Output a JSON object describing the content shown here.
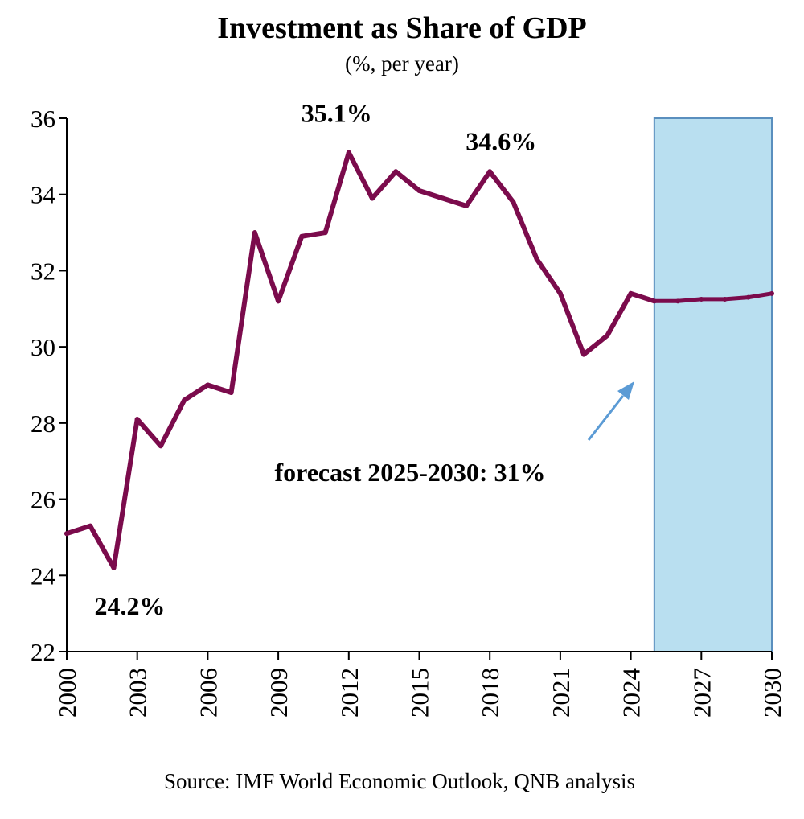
{
  "chart_data": {
    "type": "line",
    "title": "Investment as Share of GDP",
    "subtitle": "(%, per year)",
    "source": "Source: IMF World Economic Outlook, QNB analysis",
    "xlabel": "",
    "ylabel": "",
    "ylim": [
      22,
      36
    ],
    "xlim": [
      2000,
      2030
    ],
    "y_ticks": [
      22,
      24,
      26,
      28,
      30,
      32,
      34,
      36
    ],
    "x_ticks": [
      2000,
      2003,
      2006,
      2009,
      2012,
      2015,
      2018,
      2021,
      2024,
      2027,
      2030
    ],
    "x_tick_labels": [
      "2000",
      "2003",
      "2006",
      "2009",
      "2012",
      "2015",
      "2018",
      "2021",
      "2024",
      "2027",
      "2030"
    ],
    "y_tick_labels": [
      "22",
      "24",
      "26",
      "28",
      "30",
      "32",
      "34",
      "36"
    ],
    "forecast_region": {
      "start": 2025,
      "end": 2030,
      "color": "#b9dff0",
      "border_color": "#5a8fbe"
    },
    "series": [
      {
        "name": "Investment as Share of GDP",
        "color": "#7b0b4c",
        "x": [
          2000,
          2001,
          2002,
          2003,
          2004,
          2005,
          2006,
          2007,
          2008,
          2009,
          2010,
          2011,
          2012,
          2013,
          2014,
          2015,
          2016,
          2017,
          2018,
          2019,
          2020,
          2021,
          2022,
          2023,
          2024,
          2025,
          2026,
          2027,
          2028,
          2029,
          2030
        ],
        "values": [
          25.1,
          25.3,
          24.2,
          28.1,
          27.4,
          28.6,
          29.0,
          28.8,
          33.0,
          31.2,
          32.9,
          33.0,
          35.1,
          33.9,
          34.6,
          34.1,
          33.9,
          33.7,
          34.6,
          33.8,
          32.3,
          31.4,
          29.8,
          30.3,
          31.4,
          31.2,
          31.2,
          31.25,
          31.25,
          31.3,
          31.4
        ]
      }
    ],
    "annotations": [
      {
        "text": "24.2%",
        "year": 2002
      },
      {
        "text": "35.1%",
        "year": 2012
      },
      {
        "text": "34.6%",
        "year": 2018
      },
      {
        "text": "forecast 2025-2030: 31%",
        "year": 2025
      }
    ],
    "arrow_color": "#5b9bd5"
  }
}
